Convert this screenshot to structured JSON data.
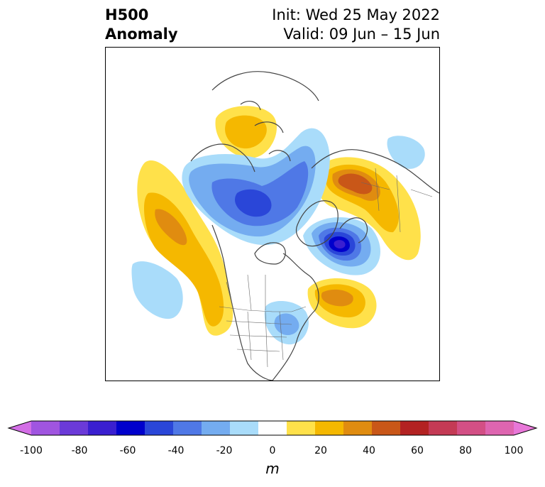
{
  "title": {
    "left_line1": "H500",
    "left_line2": "Anomaly",
    "right_line1": "Init: Wed 25 May 2022",
    "right_line2": "Valid: 09 Jun – 15 Jun"
  },
  "colorbar": {
    "unit": "m",
    "extend": "both",
    "ticks": [
      "-100",
      "-80",
      "-60",
      "-40",
      "-20",
      "0",
      "20",
      "40",
      "60",
      "80",
      "100"
    ],
    "colors": [
      "#d36ee6",
      "#a055e0",
      "#6b3ad8",
      "#3a1fd0",
      "#0000cc",
      "#2a46d8",
      "#4f78e6",
      "#74acf0",
      "#a9dcfa",
      "#ffffff",
      "#ffe14a",
      "#f5b800",
      "#e08c10",
      "#c95718",
      "#b32222",
      "#c43a55",
      "#d34f85",
      "#de65b0",
      "#e877d8"
    ]
  },
  "map": {
    "projection": "polar-stereographic",
    "features": [
      "coastlines",
      "country-borders",
      "state-borders"
    ],
    "anomalies": [
      {
        "region": "Hudson Bay / Canadian Arctic",
        "sign": "negative"
      },
      {
        "region": "Greenland / Baffin Bay",
        "sign": "negative"
      },
      {
        "region": "North Atlantic",
        "sign": "negative"
      },
      {
        "region": "Scandinavia / western Russia",
        "sign": "positive"
      },
      {
        "region": "Siberia",
        "sign": "positive"
      },
      {
        "region": "Western North America",
        "sign": "positive"
      },
      {
        "region": "Northeast Pacific",
        "sign": "positive"
      },
      {
        "region": "Western Atlantic",
        "sign": "positive"
      },
      {
        "region": "Eastern US / Ohio Valley",
        "sign": "negative"
      },
      {
        "region": "Central Pacific",
        "sign": "negative"
      },
      {
        "region": "Eastern Siberia",
        "sign": "negative"
      }
    ]
  }
}
